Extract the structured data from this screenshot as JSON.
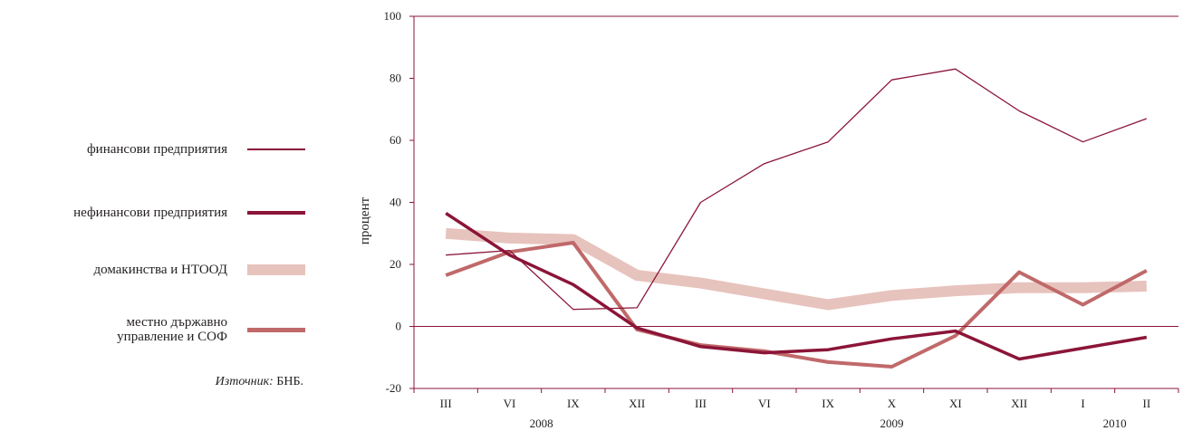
{
  "chart_data": {
    "type": "line",
    "ylabel": "процент",
    "ylim": [
      -20,
      100
    ],
    "yticks": [
      -20,
      0,
      20,
      40,
      60,
      80,
      100
    ],
    "categories": [
      "III",
      "VI",
      "IX",
      "XII",
      "III",
      "VI",
      "IX",
      "X",
      "XI",
      "XII",
      "I",
      "II"
    ],
    "year_labels": [
      {
        "label": "2008",
        "category_index": 1.5
      },
      {
        "label": "2009",
        "category_index": 7
      },
      {
        "label": "2010",
        "category_index": 10.5
      }
    ],
    "grid": false,
    "series": [
      {
        "name": "финансови предприятия",
        "color": "#8b1538",
        "style": "thin",
        "values": [
          23,
          24.5,
          5.5,
          6,
          40,
          52.5,
          59.5,
          79.5,
          83,
          69.5,
          59.5,
          67
        ]
      },
      {
        "name": "нефинансови предприятия",
        "color": "#8b1538",
        "style": "thick",
        "values": [
          36.5,
          23,
          13.5,
          -0.5,
          -6.5,
          -8.5,
          -7.5,
          -4,
          -1.5,
          -10.5,
          -7,
          -3.5
        ]
      },
      {
        "name": "домакинства и НТООД",
        "color": "#e7c3bd",
        "style": "extra-thick",
        "values": [
          30,
          28.5,
          28,
          16.5,
          14,
          10.5,
          7,
          10,
          11.5,
          12.5,
          12.5,
          13
        ]
      },
      {
        "name": "местно държавно управление и СОФ",
        "color": "#c0696a",
        "style": "medium",
        "values": [
          16.5,
          24,
          27,
          -1,
          -6,
          -8,
          -11.5,
          -13,
          -3,
          17.5,
          7,
          18
        ]
      }
    ]
  },
  "legend": {
    "items": [
      {
        "label": "финансови предприятия"
      },
      {
        "label": "нефинансови предприятия"
      },
      {
        "label": "домакинства и НТООД"
      },
      {
        "label_line1": "местно държавно",
        "label_line2": "управление и СОФ"
      }
    ]
  },
  "source": {
    "prefix": "Източник:",
    "text": "БНБ."
  }
}
